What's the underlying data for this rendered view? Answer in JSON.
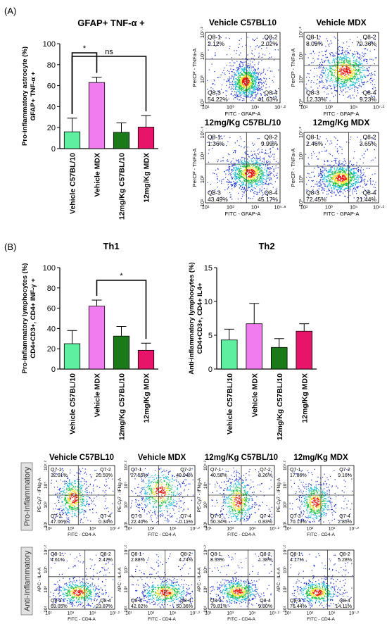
{
  "panels": {
    "a": "(A)",
    "b": "(B)"
  },
  "chart_data": [
    {
      "type": "bar",
      "title": "GFAP+ TNF-α +",
      "ylabel_lines": [
        "Pro-inflammatory astrocyte (%)",
        "GFAP+ TNF-α +"
      ],
      "categories": [
        "Vehicle C57BL/10",
        "Vehicle MDX",
        "12mg/Kg C57BL/10",
        "12mg/Kg MDX"
      ],
      "values": [
        16,
        63,
        15.5,
        20.5
      ],
      "errors": [
        13,
        5,
        9,
        11
      ],
      "colors": [
        "#5ef0a0",
        "#f07cf0",
        "#1a7a1a",
        "#e8146a"
      ],
      "ylim": [
        0,
        100
      ],
      "yticks": [
        0,
        20,
        40,
        60,
        80,
        100
      ],
      "significance": [
        {
          "from": 0,
          "to": 1,
          "label": "*",
          "level": 1
        },
        {
          "from": 0,
          "to": 3,
          "label": "ns",
          "level": 2
        }
      ]
    },
    {
      "type": "bar",
      "title": "Th1",
      "ylabel_lines": [
        "Pro-inflammatory lymphocytes (%)",
        "CD4+CD3+, CD4+ INF-γ +"
      ],
      "categories": [
        "Vehicle C57BL/10",
        "Vehicle MDX",
        "12mg/Kg C57BL/10",
        "12mg/Kg MDX"
      ],
      "values": [
        25,
        62,
        32.5,
        18.5
      ],
      "errors": [
        13,
        6,
        9.5,
        7
      ],
      "colors": [
        "#5ef0a0",
        "#f07cf0",
        "#1a7a1a",
        "#e8146a"
      ],
      "ylim": [
        0,
        100
      ],
      "yticks": [
        0,
        20,
        40,
        60,
        80,
        100
      ],
      "significance": [
        {
          "from": 1,
          "to": 3,
          "label": "*",
          "level": 1
        }
      ]
    },
    {
      "type": "bar",
      "title": "Th2",
      "ylabel_lines": [
        "Anti-inflammatory lymphocytes (%)",
        "CD4+CD3+, CD4+ IL4+"
      ],
      "categories": [
        "Vehicle C57BL/10",
        "Vehicle MDX",
        "12mg/Kg C57BL/10",
        "12mg/Kg MDX"
      ],
      "values": [
        4.3,
        6.7,
        3.2,
        5.6
      ],
      "errors": [
        1.6,
        3,
        1.3,
        1.1
      ],
      "colors": [
        "#5ef0a0",
        "#f07cf0",
        "#1a7a1a",
        "#e8146a"
      ],
      "ylim": [
        0,
        15
      ],
      "yticks": [
        0,
        5,
        10,
        15
      ],
      "significance": []
    },
    {
      "type": "scatter",
      "group": "astrocytes",
      "title": "Vehicle C57BL10",
      "xlabel": "FITC - GFAP-A",
      "ylabel": "PerCP - TNFa-A",
      "xticks": [
        "10¹",
        "10³",
        "10⁵",
        "10⁷·²"
      ],
      "yticks": [
        "10¹",
        "10³",
        "10⁵",
        "10⁷·²"
      ],
      "quadrants": [
        [
          "Q8-1",
          "2.12%"
        ],
        [
          "Q8-2",
          "2.02%"
        ],
        [
          "Q8-3",
          "54.22%"
        ],
        [
          "Q8-4",
          "41.63%"
        ]
      ],
      "gate": [
        0.55,
        0.62
      ],
      "blob": [
        0.54,
        0.3,
        0.1,
        0.12
      ]
    },
    {
      "type": "scatter",
      "group": "astrocytes",
      "title": "Vehicle MDX",
      "xlabel": "FITC - GFAP-A",
      "ylabel": "PerCP - TNFa-A",
      "xticks": [
        "10¹",
        "10³",
        "10⁵",
        "10⁷·²"
      ],
      "yticks": [
        "10¹",
        "10³",
        "10⁵",
        "10⁷·²"
      ],
      "quadrants": [
        [
          "Q8-1",
          "8.09%"
        ],
        [
          "Q8-2",
          "70.36%"
        ],
        [
          "Q8-3",
          "12.33%"
        ],
        [
          "Q8-4",
          "9.23%"
        ]
      ],
      "gate": [
        0.45,
        0.53
      ],
      "blob": [
        0.55,
        0.45,
        0.17,
        0.14
      ]
    },
    {
      "type": "scatter",
      "group": "astrocytes",
      "title": "12mg/Kg C57BL/10",
      "xlabel": "FITC - GFAP-A",
      "ylabel": "PerCP - TNFa-A",
      "xticks": [
        "10¹",
        "10²",
        "10⁴",
        "10⁵·⁸"
      ],
      "yticks": [
        "10¹",
        "10²",
        "10⁴",
        "10⁵·⁸"
      ],
      "quadrants": [
        [
          "Q8-1",
          "1.36%"
        ],
        [
          "Q8-2",
          "9.99%"
        ],
        [
          "Q8-3",
          "43.49%"
        ],
        [
          "Q8-4",
          "45.17%"
        ]
      ],
      "gate": [
        0.55,
        0.55
      ],
      "blob": [
        0.6,
        0.42,
        0.14,
        0.12
      ]
    },
    {
      "type": "scatter",
      "group": "astrocytes",
      "title": "12mg/Kg MDX",
      "xlabel": "FITC - GFAP-A",
      "ylabel": "PerCP - TNFa-A",
      "xticks": [
        "10¹",
        "10³",
        "10⁵",
        "10⁷·²"
      ],
      "yticks": [
        "10¹",
        "10³",
        "10⁵",
        "10⁷·²"
      ],
      "quadrants": [
        [
          "Q8-1",
          "2.46%"
        ],
        [
          "Q8-2",
          "3.65%"
        ],
        [
          "Q8-3",
          "72.45%"
        ],
        [
          "Q8-4",
          "21.44%"
        ]
      ],
      "gate": [
        0.6,
        0.52
      ],
      "blob": [
        0.5,
        0.35,
        0.15,
        0.1
      ]
    },
    {
      "type": "scatter",
      "group": "pro",
      "title": "Vehicle C57BL10",
      "xlabel": "FITC - CD4-A",
      "ylabel": "PE-Cy7 - IFNg-A",
      "xticks": [
        "10¹",
        "10³",
        "10⁵",
        "10⁷·²"
      ],
      "yticks": [
        "10¹",
        "10³",
        "10⁵",
        "10⁷·²"
      ],
      "quadrants": [
        [
          "Q7-1",
          "32.01%"
        ],
        [
          "Q7-2",
          "20.59%"
        ],
        [
          "Q7-3",
          "47.06%"
        ],
        [
          "Q7-4",
          "0.34%"
        ]
      ],
      "gate": [
        0.45,
        0.5
      ],
      "blob": [
        0.38,
        0.45,
        0.12,
        0.18
      ]
    },
    {
      "type": "scatter",
      "group": "pro",
      "title": "Vehicle MDX",
      "xlabel": "FITC - CD4-A",
      "ylabel": "PE-Cy7 - IFNg-A",
      "xticks": [
        "10¹",
        "10³",
        "10⁵",
        "10⁷·²"
      ],
      "yticks": [
        "10¹",
        "10³",
        "10⁵",
        "10⁷·²"
      ],
      "quadrants": [
        [
          "Q7-1",
          "27.55%"
        ],
        [
          "Q7-2",
          "49.94%"
        ],
        [
          "Q7-3",
          "22.40%"
        ],
        [
          "Q7-4",
          "0.11%"
        ]
      ],
      "gate": [
        0.45,
        0.48
      ],
      "blob": [
        0.48,
        0.55,
        0.16,
        0.2
      ]
    },
    {
      "type": "scatter",
      "group": "pro",
      "title": "12mg/Kg C57BL/10",
      "xlabel": "FITC - CD4-A",
      "ylabel": "PE-Cy7 - IFNg-A",
      "xticks": [
        "10¹",
        "10³",
        "10⁵",
        "10⁷·²"
      ],
      "yticks": [
        "10¹",
        "10³",
        "10⁵",
        "10⁷·²"
      ],
      "quadrants": [
        [
          "Q7-1",
          "40.58%"
        ],
        [
          "Q7-2",
          "8.26%"
        ],
        [
          "Q7-3",
          "50.34%"
        ],
        [
          "Q7-4",
          "0.83%"
        ]
      ],
      "gate": [
        0.5,
        0.5
      ],
      "blob": [
        0.45,
        0.4,
        0.12,
        0.2
      ]
    },
    {
      "type": "scatter",
      "group": "pro",
      "title": "12mg/Kg MDX",
      "xlabel": "FITC - CD4-A",
      "ylabel": "PE-Cy7 - IFNg-A",
      "xticks": [
        "10¹",
        "10³",
        "10⁵",
        "10⁷·²"
      ],
      "yticks": [
        "10¹",
        "10³",
        "10⁵",
        "10⁷·²"
      ],
      "quadrants": [
        [
          "Q7-1",
          "17.86%"
        ],
        [
          "Q7-2",
          "9.16%"
        ],
        [
          "Q7-3",
          "70.13%"
        ],
        [
          "Q7-4",
          "2.85%"
        ]
      ],
      "gate": [
        0.5,
        0.5
      ],
      "blob": [
        0.42,
        0.38,
        0.12,
        0.17
      ]
    },
    {
      "type": "scatter",
      "group": "anti",
      "title": "",
      "xlabel": "FITC - CD4-A",
      "ylabel": "APC - IL4-A",
      "xticks": [
        "10¹",
        "10³",
        "10⁵",
        "10⁷·²"
      ],
      "yticks": [
        "10¹",
        "10³",
        "10⁵",
        "10⁷·²"
      ],
      "quadrants": [
        [
          "Q8-1",
          "4.61%"
        ],
        [
          "Q8-2",
          "2.47%"
        ],
        [
          "Q8-3",
          "69.05%"
        ],
        [
          "Q8-4",
          "23.87%"
        ]
      ],
      "gate": [
        0.55,
        0.55
      ],
      "blob": [
        0.45,
        0.28,
        0.16,
        0.1
      ]
    },
    {
      "type": "scatter",
      "group": "anti",
      "title": "",
      "xlabel": "FITC - CD4-A",
      "ylabel": "APC - IL4-A",
      "xticks": [
        "10¹",
        "10³",
        "10⁵",
        "10⁷·²"
      ],
      "yticks": [
        "10¹",
        "10³",
        "10⁵",
        "10⁷·²"
      ],
      "quadrants": [
        [
          "Q8-1",
          "2.88%"
        ],
        [
          "Q8-2",
          "4.74%"
        ],
        [
          "Q8-3",
          "42.02%"
        ],
        [
          "Q8-4",
          "50.36%"
        ]
      ],
      "gate": [
        0.55,
        0.55
      ],
      "blob": [
        0.55,
        0.28,
        0.18,
        0.1
      ]
    },
    {
      "type": "scatter",
      "group": "anti",
      "title": "",
      "xlabel": "FITC - CD4-A",
      "ylabel": "APC - IL4-A",
      "xticks": [
        "10¹",
        "10³",
        "10⁵",
        "10⁷·²"
      ],
      "yticks": [
        "10¹",
        "10³",
        "10⁵",
        "10⁷·²"
      ],
      "quadrants": [
        [
          "Q8-1",
          "8.93%"
        ],
        [
          "Q8-2",
          "1.38%"
        ],
        [
          "Q8-3",
          "79.81%"
        ],
        [
          "Q8-4",
          "9.80%"
        ]
      ],
      "gate": [
        0.6,
        0.55
      ],
      "blob": [
        0.45,
        0.3,
        0.15,
        0.1
      ]
    },
    {
      "type": "scatter",
      "group": "anti",
      "title": "",
      "xlabel": "FITC - CD4-A",
      "ylabel": "APC - IL4-A",
      "xticks": [
        "10¹",
        "10³",
        "10⁵",
        "10⁷·²"
      ],
      "yticks": [
        "10¹",
        "10³",
        "10⁵",
        "10⁷·²"
      ],
      "quadrants": [
        [
          "Q8-1",
          "4.17%"
        ],
        [
          "Q8-2",
          "5.28%"
        ],
        [
          "Q8-3",
          "76.44%"
        ],
        [
          "Q8-4",
          "14.11%"
        ]
      ],
      "gate": [
        0.6,
        0.55
      ],
      "blob": [
        0.45,
        0.28,
        0.15,
        0.1
      ]
    }
  ],
  "row_labels": [
    "Pro-Inflammatory",
    "Anti-Inflammatory"
  ]
}
